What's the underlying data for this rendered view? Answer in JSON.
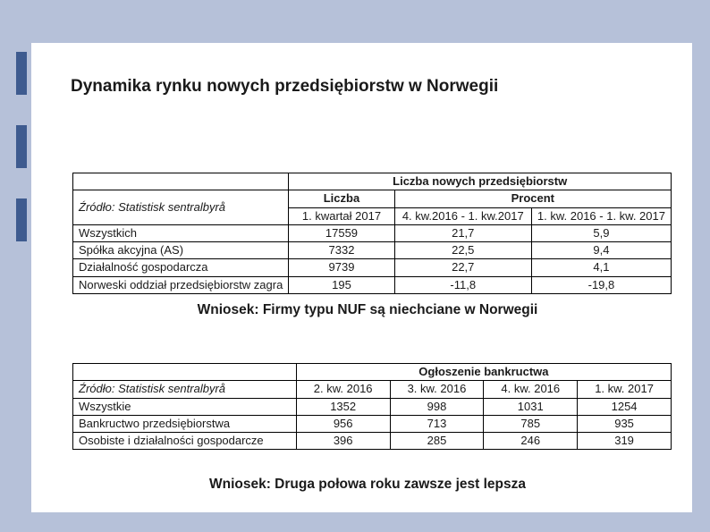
{
  "title": "Dynamika rynku nowych przedsiębiorstw w Norwegii",
  "table1": {
    "supertitle": "Liczba nowych przedsiębiorstw",
    "source_label": "Źródło: Statistisk sentralbyrå",
    "header_liczba": "Liczba",
    "header_procent": "Procent",
    "sub1": "1. kwartał 2017",
    "sub2": "4. kw.2016 - 1. kw.2017",
    "sub3": "1. kw. 2016 - 1. kw. 2017",
    "rows": [
      {
        "label": "Wszystkich",
        "v1": "17559",
        "v2": "21,7",
        "v3": "5,9"
      },
      {
        "label": "Spółka akcyjna (AS)",
        "v1": "7332",
        "v2": "22,5",
        "v3": "9,4"
      },
      {
        "label": "Działalność gospodarcza",
        "v1": "9739",
        "v2": "22,7",
        "v3": "4,1"
      },
      {
        "label": "Norweski oddział przedsiębiorstw zagra",
        "v1": "195",
        "v2": "-11,8",
        "v3": "-19,8"
      }
    ]
  },
  "conclusion1": "Wniosek: Firmy typu NUF są niechciane w Norwegii",
  "table2": {
    "supertitle": "Ogłoszenie bankructwa",
    "source_label": "Źródło: Statistisk sentralbyrå",
    "col1": "2. kw. 2016",
    "col2": "3. kw. 2016",
    "col3": "4. kw. 2016",
    "col4": "1. kw. 2017",
    "rows": [
      {
        "label": "Wszystkie",
        "v1": "1352",
        "v2": "998",
        "v3": "1031",
        "v4": "1254"
      },
      {
        "label": "Bankructwo przedsiębiorstwa",
        "v1": "956",
        "v2": "713",
        "v3": "785",
        "v4": "935"
      },
      {
        "label": "Osobiste i działalności gospodarcze",
        "v1": "396",
        "v2": "285",
        "v3": "246",
        "v4": "319"
      }
    ]
  },
  "conclusion2": "Wniosek: Druga połowa roku zawsze jest lepsza"
}
